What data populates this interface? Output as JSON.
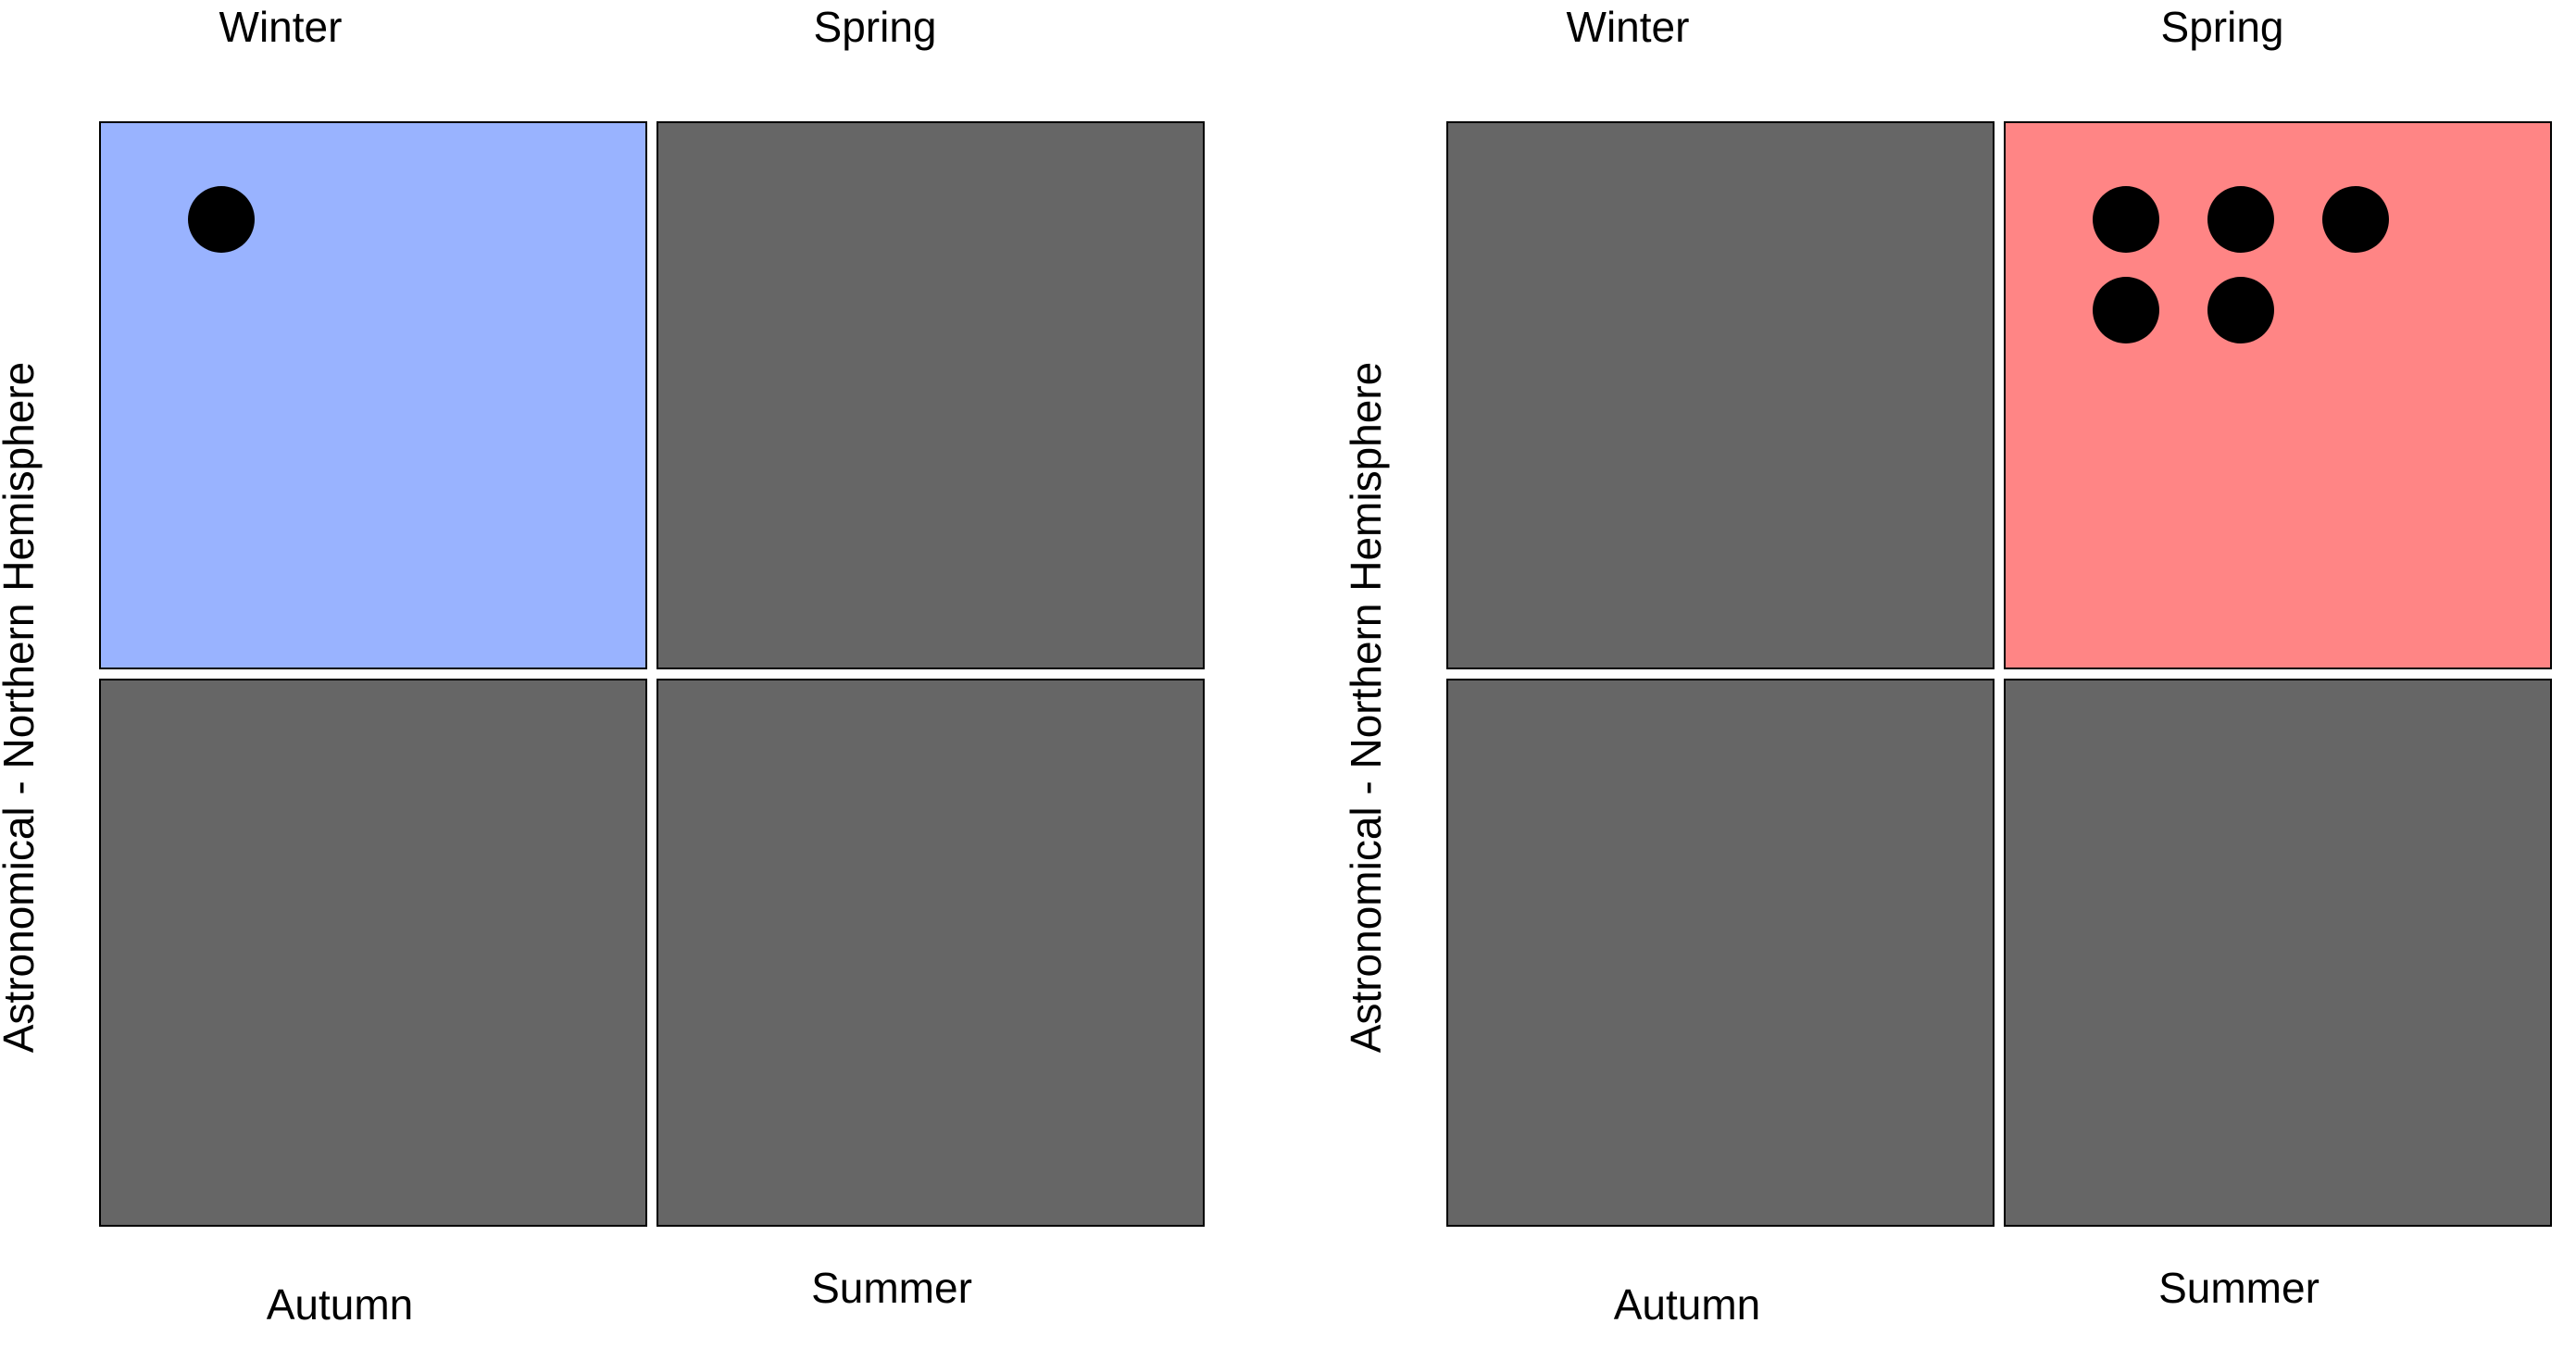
{
  "panels": [
    {
      "axis_label": "Astronomical - Northern Hemisphere",
      "season_labels": {
        "top_left": "Winter",
        "top_right": "Spring",
        "bottom_left": "Autumn",
        "bottom_right": "Summer"
      },
      "quadrant_colors": {
        "top_left": "#99b3ff",
        "top_right": "#666666",
        "bottom_left": "#666666",
        "bottom_right": "#666666"
      },
      "highlighted_quadrant": "top_left",
      "dot_count": 1
    },
    {
      "axis_label": "Astronomical - Northern Hemisphere",
      "season_labels": {
        "top_left": "Winter",
        "top_right": "Spring",
        "bottom_left": "Autumn",
        "bottom_right": "Summer"
      },
      "quadrant_colors": {
        "top_left": "#666666",
        "top_right": "#ff8585",
        "bottom_left": "#666666",
        "bottom_right": "#666666"
      },
      "highlighted_quadrant": "top_right",
      "dot_count": 5
    }
  ]
}
